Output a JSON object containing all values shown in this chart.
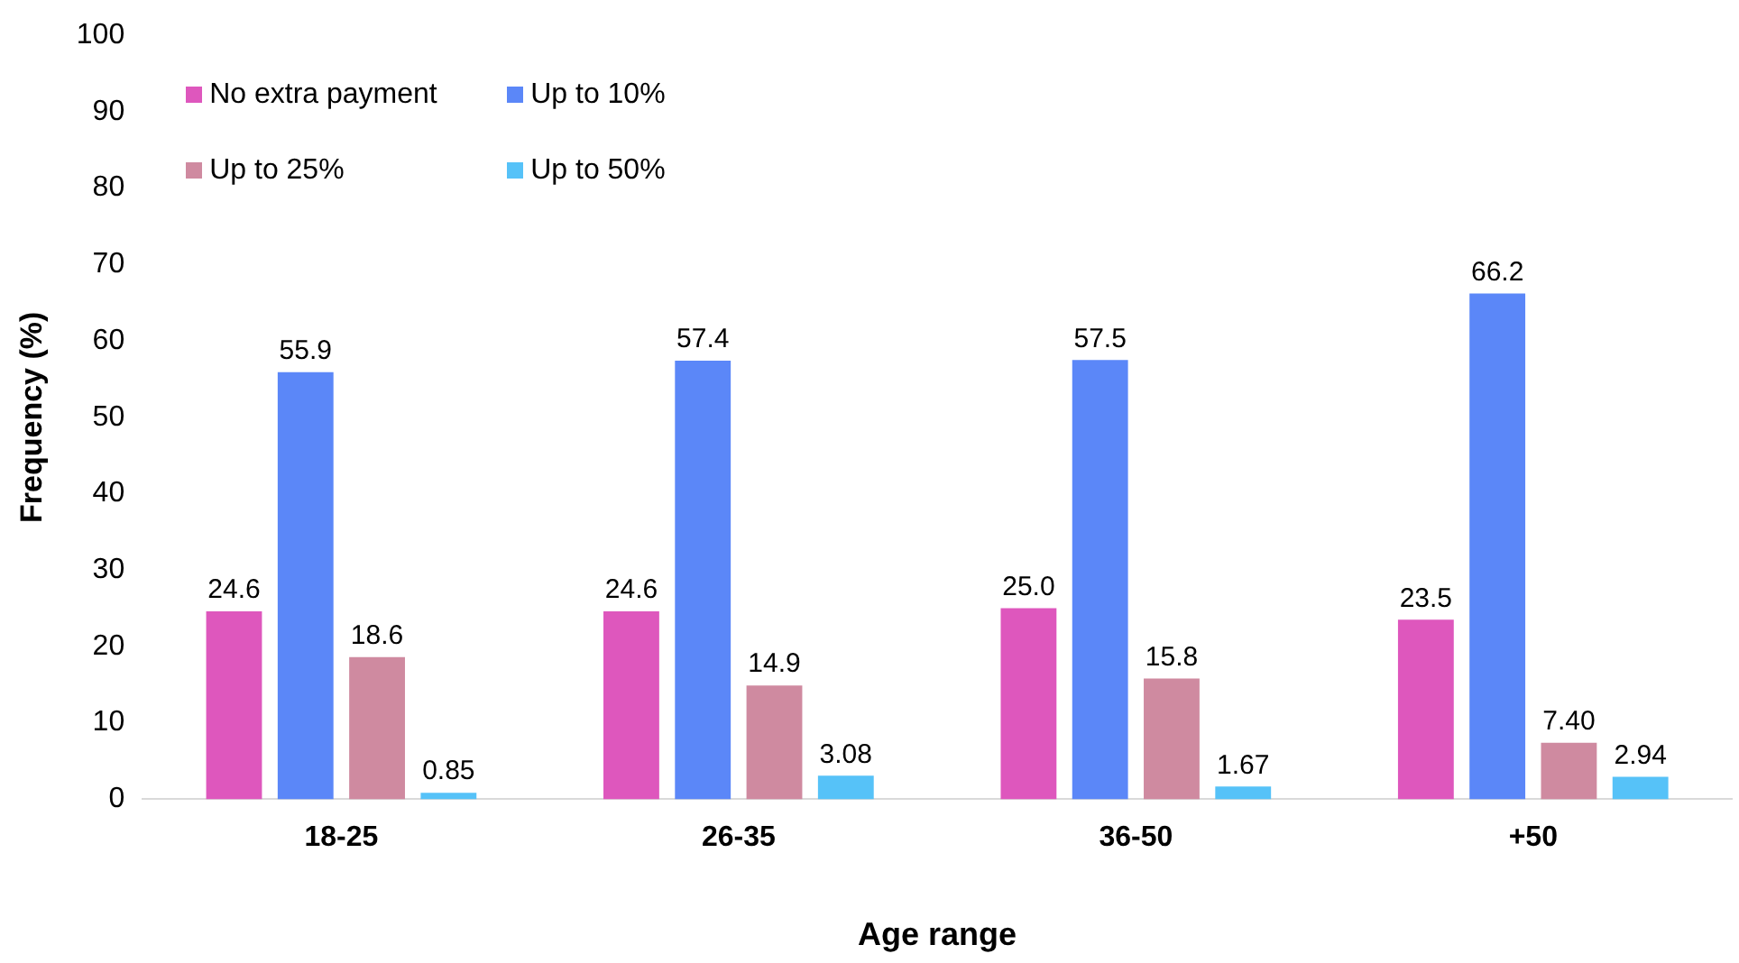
{
  "chart_data": {
    "type": "bar",
    "xlabel": "Age range",
    "ylabel": "Frequency (%)",
    "categories": [
      "18-25",
      "26-35",
      "36-50",
      "+50"
    ],
    "series": [
      {
        "name": "No extra payment",
        "color": "#de57bd",
        "values": [
          24.6,
          24.6,
          25.0,
          23.5
        ],
        "value_labels": [
          "24.6",
          "24.6",
          "25.0",
          "23.5"
        ]
      },
      {
        "name": "Up to 10%",
        "color": "#5b87f8",
        "values": [
          55.9,
          57.4,
          57.5,
          66.2
        ],
        "value_labels": [
          "55.9",
          "57.4",
          "57.5",
          "66.2"
        ]
      },
      {
        "name": "Up to 25%",
        "color": "#cf8aa0",
        "values": [
          18.6,
          14.9,
          15.8,
          7.4
        ],
        "value_labels": [
          "18.6",
          "14.9",
          "15.8",
          "7.40"
        ]
      },
      {
        "name": "Up to 50%",
        "color": "#56c2f8",
        "values": [
          0.85,
          3.08,
          1.67,
          2.94
        ],
        "value_labels": [
          "0.85",
          "3.08",
          "1.67",
          "2.94"
        ]
      }
    ],
    "ylim": [
      0,
      100
    ],
    "yticks": [
      0,
      10,
      20,
      30,
      40,
      50,
      60,
      70,
      80,
      90,
      100
    ],
    "grid": false,
    "legend": "top left"
  }
}
